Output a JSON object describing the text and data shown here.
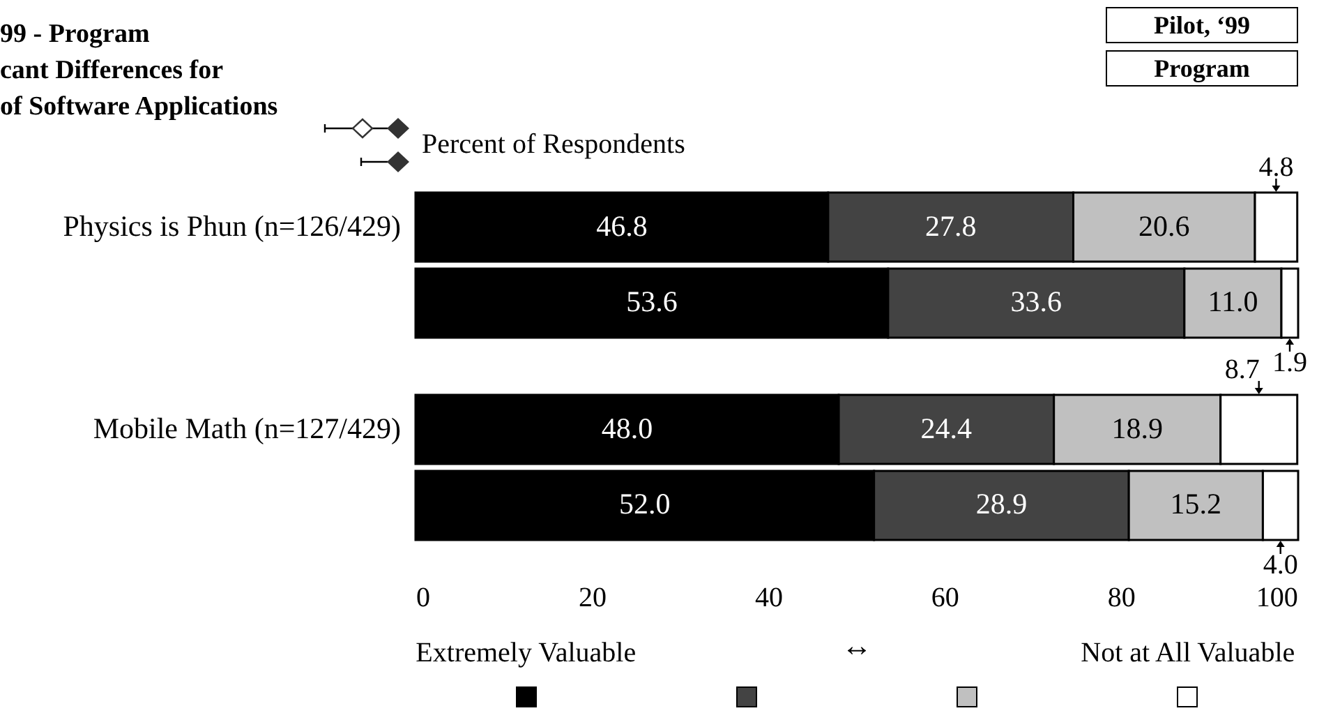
{
  "chart_data": {
    "type": "bar",
    "orientation": "horizontal",
    "stacked": true,
    "title": "99 - Program\ncant Differences for\nof Software Applications",
    "xlabel": "Percent of Respondents",
    "categories": [
      "Physics is Phun (n=126/429)",
      null,
      "Mobile Math (n=127/429)",
      null
    ],
    "series": [
      {
        "color": "#000000",
        "values": [
          46.8,
          53.6,
          48.0,
          52.0
        ],
        "value_labels": [
          "46.8",
          "53.6",
          "48.0",
          "52.0"
        ]
      },
      {
        "color": "#434343",
        "values": [
          27.8,
          33.6,
          24.4,
          28.9
        ],
        "value_labels": [
          "27.8",
          "33.6",
          "24.4",
          "28.9"
        ]
      },
      {
        "color": "#c0c0c0",
        "values": [
          20.6,
          11.0,
          18.9,
          15.2
        ],
        "value_labels": [
          "20.6",
          "11.0",
          "18.9",
          "15.2"
        ]
      },
      {
        "color": "#ffffff",
        "values": [
          4.8,
          1.9,
          8.7,
          4.0
        ],
        "value_labels": [
          "4.8",
          "1.9",
          "8.7",
          "4.0"
        ]
      }
    ],
    "xlim": [
      0,
      100.1
    ],
    "xticks": [
      0,
      20,
      40,
      60,
      80,
      100
    ],
    "grid": false,
    "annotations": [
      "Pilot, ‘99",
      "Program",
      "Extremely Valuable",
      "↔",
      "Not at All Valuable"
    ]
  }
}
